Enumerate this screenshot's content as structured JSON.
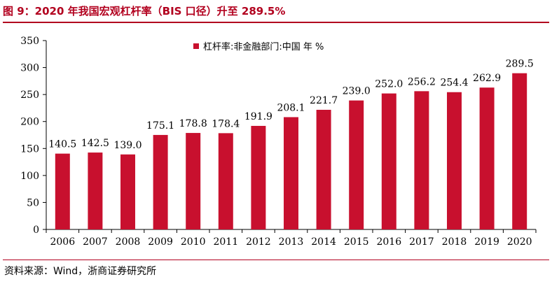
{
  "figure": {
    "title": "图 9：2020 年我国宏观杠杆率（BIS 口径）升至 289.5%",
    "source": "资料来源：Wind，浙商证券研究所"
  },
  "colors": {
    "accent": "#b2001e",
    "bar": "#c8102e",
    "axis": "#000000"
  },
  "chart_data": {
    "type": "bar",
    "title": "",
    "xlabel": "",
    "ylabel": "",
    "legend": {
      "label": "杠杆率:非金融部门:中国 年 %",
      "placement": "top-center"
    },
    "categories": [
      "2006",
      "2007",
      "2008",
      "2009",
      "2010",
      "2011",
      "2012",
      "2013",
      "2014",
      "2015",
      "2016",
      "2017",
      "2018",
      "2019",
      "2020"
    ],
    "values": [
      140.5,
      142.5,
      139.0,
      175.1,
      178.8,
      178.4,
      191.9,
      208.1,
      221.7,
      239.0,
      252.0,
      256.2,
      254.4,
      262.9,
      289.5
    ],
    "data_labels": [
      "140.5",
      "142.5",
      "139.0",
      "175.1",
      "178.8",
      "178.4",
      "191.9",
      "208.1",
      "221.7",
      "239.0",
      "252.0",
      "256.2",
      "254.4",
      "262.9",
      "289.5"
    ],
    "ylim": [
      0,
      350
    ],
    "yticks": [
      0,
      50,
      100,
      150,
      200,
      250,
      300,
      350
    ],
    "grid": false
  }
}
